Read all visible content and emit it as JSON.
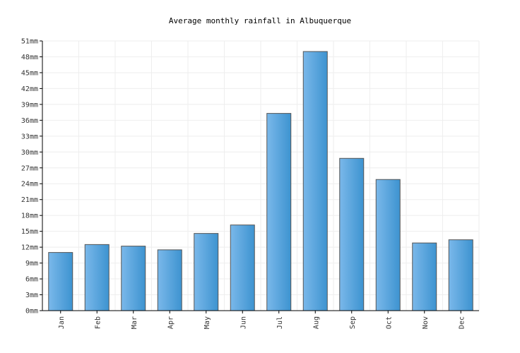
{
  "chart_data": {
    "type": "bar",
    "title": "Average monthly rainfall in Albuquerque",
    "xlabel": "",
    "ylabel": "",
    "categories": [
      "Jan",
      "Feb",
      "Mar",
      "Apr",
      "May",
      "Jun",
      "Jul",
      "Aug",
      "Sep",
      "Oct",
      "Nov",
      "Dec"
    ],
    "values": [
      11,
      12.5,
      12.2,
      11.5,
      14.6,
      16.2,
      37.3,
      49,
      28.8,
      24.8,
      12.8,
      13.4
    ],
    "unit": "mm",
    "ylim": [
      0,
      51
    ],
    "yticks": [
      "0mm",
      "3mm",
      "6mm",
      "9mm",
      "12mm",
      "15mm",
      "18mm",
      "21mm",
      "24mm",
      "27mm",
      "30mm",
      "33mm",
      "36mm",
      "39mm",
      "42mm",
      "45mm",
      "48mm",
      "51mm"
    ],
    "grid": true,
    "legend": "none",
    "colors": {
      "bar_light": "#7ab8ea",
      "bar_dark": "#3d93d0",
      "bar_stroke": "#555555",
      "grid": "#eeeeee",
      "axis": "#000000"
    }
  }
}
